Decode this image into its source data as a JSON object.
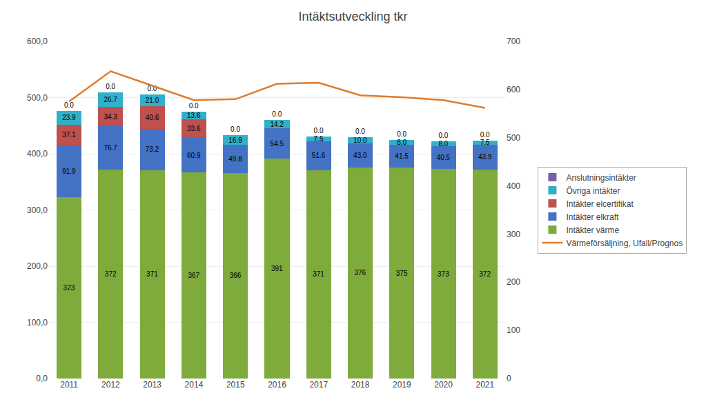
{
  "chart_data": {
    "type": "bar",
    "title": "Intäktsutveckling tkr",
    "categories": [
      "2011",
      "2012",
      "2013",
      "2014",
      "2015",
      "2016",
      "2017",
      "2018",
      "2019",
      "2020",
      "2021"
    ],
    "stacked": true,
    "data_labels": true,
    "grid": true,
    "legend": "right",
    "ylim": [
      0,
      600
    ],
    "yticks": [
      {
        "value": 0,
        "label": "0,0"
      },
      {
        "value": 100,
        "label": "100,0"
      },
      {
        "value": 200,
        "label": "200,0"
      },
      {
        "value": 300,
        "label": "300,0"
      },
      {
        "value": 400,
        "label": "400,0"
      },
      {
        "value": 500,
        "label": "500,0"
      },
      {
        "value": 600,
        "label": "600,0"
      }
    ],
    "y2lim": [
      0,
      700
    ],
    "y2ticks": [
      0,
      100,
      200,
      300,
      400,
      500,
      600,
      700
    ],
    "series": [
      {
        "name": "Intäkter värme",
        "color": "#7faa3c",
        "values": [
          323,
          372,
          371,
          367,
          366,
          391,
          371,
          376,
          375,
          373,
          372
        ]
      },
      {
        "name": "Intäkter elkraft",
        "color": "#4472c4",
        "values": [
          91.9,
          76.7,
          73.2,
          60.9,
          49.8,
          54.5,
          51.6,
          43.0,
          41.5,
          40.5,
          43.9
        ],
        "value_labels": [
          "91.9",
          "76.7",
          "73.2",
          "60.9",
          "49.8",
          "54.5",
          "51.6",
          "43.0",
          "41.5",
          "40.5",
          "43.9"
        ]
      },
      {
        "name": "Intäkter elcertifikat",
        "color": "#c0504d",
        "values": [
          37.1,
          34.3,
          40.6,
          33.6,
          0.0,
          0.0,
          0.0,
          0.0,
          0.0,
          0.0,
          0.0
        ],
        "value_labels": [
          "37.1",
          "34.3",
          "40.6",
          "33.6",
          null,
          null,
          null,
          null,
          null,
          null,
          null
        ]
      },
      {
        "name": "Övriga intäkter",
        "color": "#31b0c9",
        "values": [
          23.9,
          26.7,
          21.0,
          13.6,
          16.9,
          14.2,
          7.5,
          10.0,
          8.0,
          8.0,
          7.5
        ],
        "value_labels": [
          "23.9",
          "26.7",
          "21.0",
          "13.6",
          "16.9",
          "14.2",
          "7.5",
          "10.0",
          "8.0",
          "8.0",
          "7.5"
        ]
      },
      {
        "name": "Anslutningsintäkter",
        "color": "#7b5ea7",
        "values": [
          0.0,
          0.0,
          0.0,
          0.0,
          0.0,
          0.0,
          0.0,
          0.0,
          0.0,
          0.0,
          0.0
        ],
        "value_labels": [
          "0.0",
          "0.0",
          "0.0",
          "0.0",
          "0.0",
          "0.0",
          "0.0",
          "0.0",
          "0.0",
          "0.0",
          "0.0"
        ]
      },
      {
        "name": "Värmeförsäljning, Ufall/Prognos",
        "type": "line",
        "axis": "y2",
        "color": "#e07b2a",
        "data_labels": false,
        "values": [
          575,
          638,
          608,
          578,
          580,
          612,
          614,
          588,
          584,
          578,
          562
        ]
      }
    ]
  }
}
